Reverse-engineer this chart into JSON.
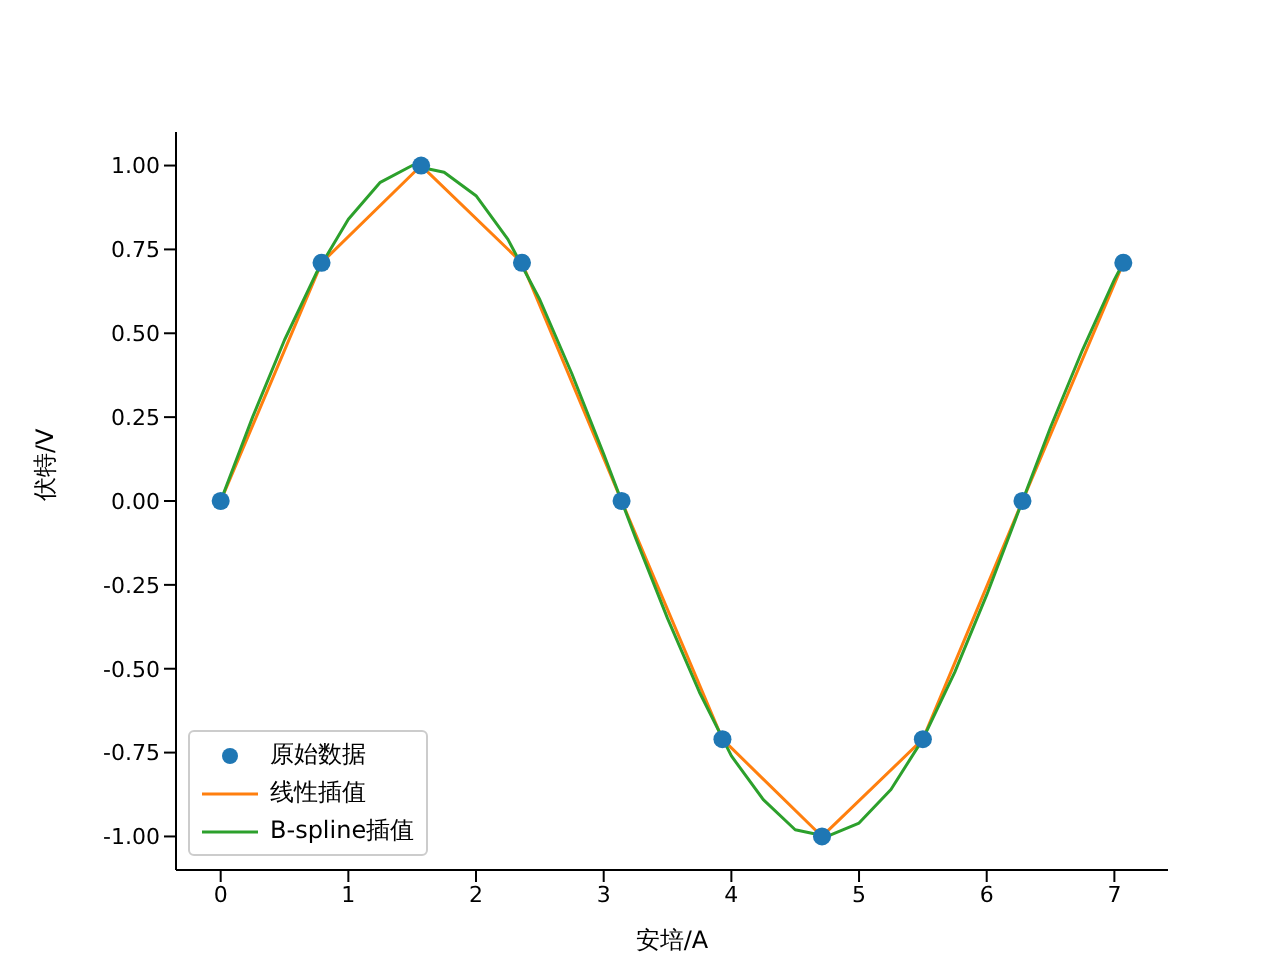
{
  "chart_data": {
    "type": "line",
    "xlabel": "安培/A",
    "ylabel": "伏特/V",
    "xlim": [
      -0.35,
      7.42
    ],
    "xticks": [
      0,
      1,
      2,
      3,
      4,
      5,
      6,
      7
    ],
    "ylim": [
      -1.1,
      1.1
    ],
    "yticks": [
      {
        "value": -1,
        "label": "-1.00"
      },
      {
        "value": -0.75,
        "label": "-0.75"
      },
      {
        "value": -0.5,
        "label": "-0.50"
      },
      {
        "value": -0.25,
        "label": "-0.25"
      },
      {
        "value": 0,
        "label": "0.00"
      },
      {
        "value": 0.25,
        "label": "0.25"
      },
      {
        "value": 0.5,
        "label": "0.50"
      },
      {
        "value": 0.75,
        "label": "0.75"
      },
      {
        "value": 1,
        "label": "1.00"
      }
    ],
    "grid": false,
    "legend": "bottom left",
    "series": [
      {
        "name": "原始数据",
        "type": "scatter",
        "marker": "circle",
        "color": "#1f77b4",
        "x": [
          0,
          0.79,
          1.57,
          2.36,
          3.14,
          3.93,
          4.71,
          5.5,
          6.28,
          7.07
        ],
        "values": [
          0,
          0.71,
          1,
          0.71,
          0,
          -0.71,
          -1,
          -0.71,
          0,
          0.71
        ]
      },
      {
        "name": "线性插值",
        "type": "line",
        "color": "#ff7f0e",
        "x": [
          0,
          0.79,
          1.57,
          2.36,
          3.14,
          3.93,
          4.71,
          5.5,
          6.28,
          7.07
        ],
        "values": [
          0,
          0.71,
          1,
          0.71,
          0,
          -0.71,
          -1,
          -0.71,
          0,
          0.71
        ]
      },
      {
        "name": "B-spline插值",
        "type": "line",
        "color": "#2ca02c",
        "x": [
          0,
          0.25,
          0.5,
          0.75,
          1,
          1.25,
          1.5,
          1.75,
          2,
          2.25,
          2.5,
          2.75,
          3,
          3.25,
          3.5,
          3.75,
          4,
          4.25,
          4.5,
          4.75,
          5,
          5.25,
          5.5,
          5.75,
          6,
          6.25,
          6.5,
          6.75,
          7,
          7.07
        ],
        "values": [
          0,
          0.25,
          0.48,
          0.68,
          0.84,
          0.95,
          1,
          0.98,
          0.91,
          0.78,
          0.6,
          0.38,
          0.14,
          -0.11,
          -0.35,
          -0.57,
          -0.76,
          -0.89,
          -0.98,
          -1,
          -0.96,
          -0.86,
          -0.71,
          -0.51,
          -0.28,
          -0.03,
          0.22,
          0.45,
          0.66,
          0.71
        ]
      }
    ]
  }
}
